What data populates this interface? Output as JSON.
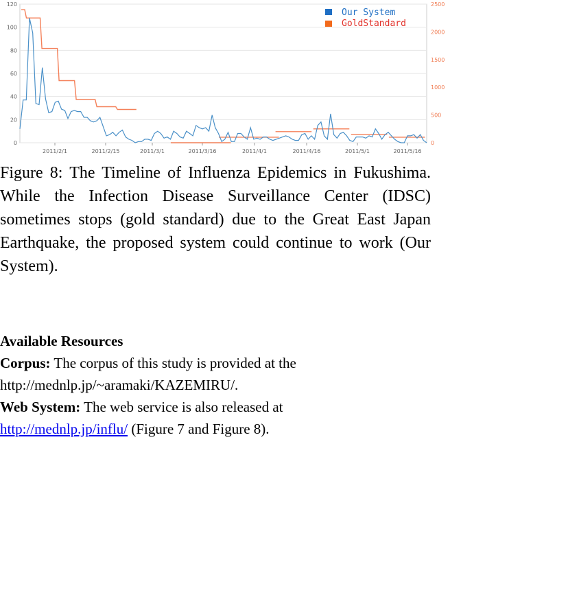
{
  "chart_data": {
    "type": "line",
    "y_left_range": [
      0,
      120
    ],
    "y_right_range": [
      0,
      2500
    ],
    "y_left_ticks": [
      "0",
      "20",
      "40",
      "60",
      "80",
      "100",
      "120"
    ],
    "y_right_ticks": [
      "0",
      "500",
      "1000",
      "1500",
      "2000",
      "2500"
    ],
    "x_ticks": [
      "2011/2/1",
      "2011/2/15",
      "2011/3/1",
      "2011/3/16",
      "2011/4/1",
      "2011/4/16",
      "2011/5/1",
      "2011/5/16"
    ],
    "grid": true,
    "legend_placement": "top-right",
    "series": [
      {
        "name": "Our System",
        "color": "#4a90c8",
        "axis": "left",
        "values": [
          12,
          37,
          37,
          108,
          95,
          34,
          33,
          65,
          38,
          26,
          27,
          35,
          36,
          29,
          28,
          21,
          27,
          28,
          27,
          27,
          22,
          22,
          19,
          18,
          19,
          22,
          14,
          6,
          7,
          9,
          6,
          9,
          11,
          5,
          3,
          2,
          0,
          1,
          1,
          3,
          3,
          2,
          8,
          10,
          8,
          4,
          5,
          3,
          10,
          8,
          5,
          4,
          10,
          8,
          6,
          15,
          13,
          12,
          13,
          10,
          24,
          13,
          8,
          1,
          3,
          9,
          1,
          1,
          8,
          8,
          5,
          3,
          13,
          3,
          4,
          3,
          5,
          5,
          3,
          2,
          3,
          4,
          5,
          6,
          5,
          3,
          2,
          2,
          7,
          8,
          3,
          6,
          3,
          15,
          18,
          6,
          3,
          25,
          7,
          4,
          8,
          9,
          6,
          2,
          1,
          5,
          5,
          5,
          4,
          6,
          5,
          12,
          8,
          3,
          7,
          9,
          6,
          3,
          1,
          0,
          0,
          6,
          6,
          7,
          4,
          7,
          2,
          0
        ],
        "x_indices_start": 0
      },
      {
        "name": "GoldStandard",
        "color": "#f26a3c",
        "axis": "right",
        "segments": [
          {
            "from": 0,
            "values": [
              2400,
              2400,
              2400,
              2250,
              2250,
              2250,
              2250,
              2250,
              2250,
              2250,
              2250,
              2250,
              1700,
              1700,
              1700,
              1700,
              1700,
              1700,
              1700,
              1700,
              1700,
              1700,
              1120,
              1120,
              1120,
              1120,
              1120,
              1120,
              1120,
              1120,
              1120,
              1120,
              780,
              780,
              780,
              780,
              780,
              780,
              780,
              780,
              780,
              780,
              780,
              780,
              650,
              650,
              650,
              650,
              650,
              650,
              650,
              650,
              650,
              650,
              650,
              650,
              600,
              600,
              600,
              600,
              600,
              600,
              600,
              600,
              600,
              600,
              600,
              600
            ]
          },
          {
            "from": 87,
            "values": [
              0,
              0,
              0,
              0,
              0,
              0,
              0,
              0,
              0,
              0,
              0,
              0,
              0,
              0,
              0,
              0,
              0,
              0,
              0,
              0,
              0,
              0,
              0,
              0,
              0,
              0,
              0,
              0,
              0,
              0,
              0,
              0,
              0,
              0,
              0,
              0
            ]
          },
          {
            "from": 115,
            "values": [
              100,
              100,
              100,
              100,
              100,
              100,
              100,
              100,
              100,
              100,
              100,
              100,
              100,
              100,
              100,
              100,
              100,
              100,
              100,
              100,
              100,
              100,
              100,
              100,
              100,
              100,
              100,
              100,
              100,
              100,
              100,
              100,
              100,
              100,
              100,
              100
            ]
          },
          {
            "from": 148,
            "values": [
              200,
              200,
              200,
              200,
              200,
              200,
              200,
              200,
              200,
              200,
              200,
              200,
              200,
              200,
              200,
              200,
              200,
              200,
              200,
              200,
              200,
              200
            ]
          },
          {
            "from": 170,
            "values": [
              250,
              250,
              250,
              250,
              250,
              250,
              250,
              250,
              250,
              250,
              250,
              250,
              250,
              250,
              250,
              250,
              250,
              250,
              250,
              250,
              250,
              250
            ]
          },
          {
            "from": 192,
            "values": [
              150,
              150,
              150,
              150,
              150,
              150,
              150,
              150,
              150,
              150,
              150,
              150,
              150,
              150,
              150,
              150,
              150,
              150,
              150,
              150,
              150,
              150
            ]
          },
          {
            "from": 214,
            "values": [
              100,
              100,
              100,
              100,
              100,
              100,
              100,
              100,
              100,
              100,
              100,
              100,
              100,
              100,
              100,
              100,
              100,
              100,
              100,
              100,
              100,
              100
            ]
          }
        ]
      }
    ]
  },
  "caption": "Figure 8: The Timeline of Influenza Epidemics in Fukushima. While the Infection Disease Surveillance Center (IDSC) sometimes stops (gold standard) due to the Great East Japan Earthquake, the proposed system could continue to work (Our System).",
  "resources": {
    "title": "Available Resources",
    "corpus_label": "Corpus:",
    "corpus_text": " The corpus of this study is provided at the",
    "corpus_url": "http://mednlp.jp/~aramaki/KAZEMIRU/.",
    "web_label": "Web System:",
    "web_text": " The web service is also released at",
    "web_url": "http://mednlp.jp/influ/",
    "web_suffix": " (Figure 7 and Figure 8)."
  }
}
